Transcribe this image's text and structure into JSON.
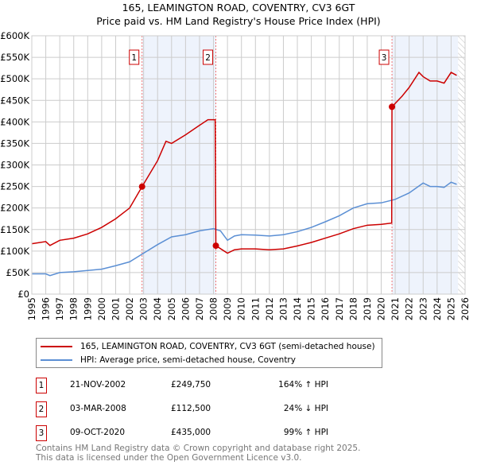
{
  "chart_data": {
    "type": "line",
    "title": "165, LEAMINGTON ROAD, COVENTRY, CV3 6GT",
    "subtitle": "Price paid vs. HM Land Registry's House Price Index (HPI)",
    "xlim": [
      1995,
      2026
    ],
    "ylim": [
      0,
      600000
    ],
    "y_ticks": [
      0,
      50000,
      100000,
      150000,
      200000,
      250000,
      300000,
      350000,
      400000,
      450000,
      500000,
      550000,
      600000
    ],
    "y_tick_labels": [
      "£0",
      "£50K",
      "£100K",
      "£150K",
      "£200K",
      "£250K",
      "£300K",
      "£350K",
      "£400K",
      "£450K",
      "£500K",
      "£550K",
      "£600K"
    ],
    "x_ticks": [
      1995,
      1996,
      1997,
      1998,
      1999,
      2000,
      2001,
      2002,
      2003,
      2004,
      2005,
      2006,
      2007,
      2008,
      2009,
      2010,
      2011,
      2012,
      2013,
      2014,
      2015,
      2016,
      2017,
      2018,
      2019,
      2020,
      2021,
      2022,
      2023,
      2024,
      2025,
      2026
    ],
    "grid": true,
    "series": [
      {
        "name": "165, LEAMINGTON ROAD, COVENTRY, CV3 6GT (semi-detached house)",
        "color": "#cc0000",
        "x": [
          1995,
          1996,
          1996.3,
          1997,
          1998,
          1999,
          2000,
          2001,
          2002,
          2002.89,
          2004,
          2004.6,
          2005,
          2006,
          2007,
          2007.6,
          2008.12,
          2008.17,
          2009,
          2009.5,
          2010,
          2011,
          2012,
          2013,
          2014,
          2015,
          2016,
          2017,
          2018,
          2019,
          2020,
          2020.75,
          2020.77,
          2021.5,
          2022,
          2022.7,
          2023,
          2023.5,
          2024,
          2024.5,
          2025,
          2025.4
        ],
        "y": [
          117000,
          122000,
          113000,
          125000,
          130000,
          140000,
          155000,
          175000,
          200000,
          249750,
          310000,
          355000,
          350000,
          370000,
          392000,
          405000,
          405000,
          112500,
          95000,
          103000,
          105000,
          105000,
          103000,
          105000,
          112000,
          120000,
          130000,
          140000,
          152000,
          160000,
          162000,
          165000,
          435000,
          460000,
          480000,
          515000,
          505000,
          495000,
          495000,
          490000,
          515000,
          508000
        ]
      },
      {
        "name": "HPI: Average price, semi-detached house, Coventry",
        "color": "#5b8fd4",
        "x": [
          1995,
          1996,
          1996.3,
          1997,
          1998,
          1999,
          2000,
          2001,
          2002,
          2003,
          2004,
          2005,
          2006,
          2007,
          2008,
          2008.5,
          2009,
          2009.5,
          2010,
          2011,
          2012,
          2013,
          2014,
          2015,
          2016,
          2017,
          2018,
          2019,
          2020,
          2021,
          2022,
          2023,
          2023.5,
          2024,
          2024.5,
          2025,
          2025.4
        ],
        "y": [
          47000,
          47000,
          43000,
          50000,
          52000,
          55000,
          58000,
          66000,
          75000,
          95000,
          115000,
          133000,
          138000,
          147000,
          152000,
          147000,
          125000,
          135000,
          138000,
          137000,
          135000,
          138000,
          145000,
          155000,
          168000,
          182000,
          200000,
          210000,
          212000,
          220000,
          235000,
          258000,
          250000,
          250000,
          248000,
          260000,
          255000
        ]
      }
    ],
    "sales": [
      {
        "id": "1",
        "x": 2002.89,
        "date": "21-NOV-2002",
        "price": "£249,750",
        "value": 249750,
        "hpi": "164% ↑ HPI"
      },
      {
        "id": "2",
        "x": 2008.17,
        "date": "03-MAR-2008",
        "price": "£112,500",
        "value": 112500,
        "hpi": "24% ↓ HPI"
      },
      {
        "id": "3",
        "x": 2020.77,
        "date": "09-OCT-2020",
        "price": "£435,000",
        "value": 435000,
        "hpi": "99% ↑ HPI"
      }
    ],
    "shaded_ranges": [
      [
        2002.89,
        2008.17
      ],
      [
        2020.77,
        2025.5
      ]
    ],
    "hatched_from": 2025.5,
    "legend_position": "below"
  },
  "footer": [
    "Contains HM Land Registry data © Crown copyright and database right 2025.",
    "This data is licensed under the Open Government Licence v3.0."
  ]
}
